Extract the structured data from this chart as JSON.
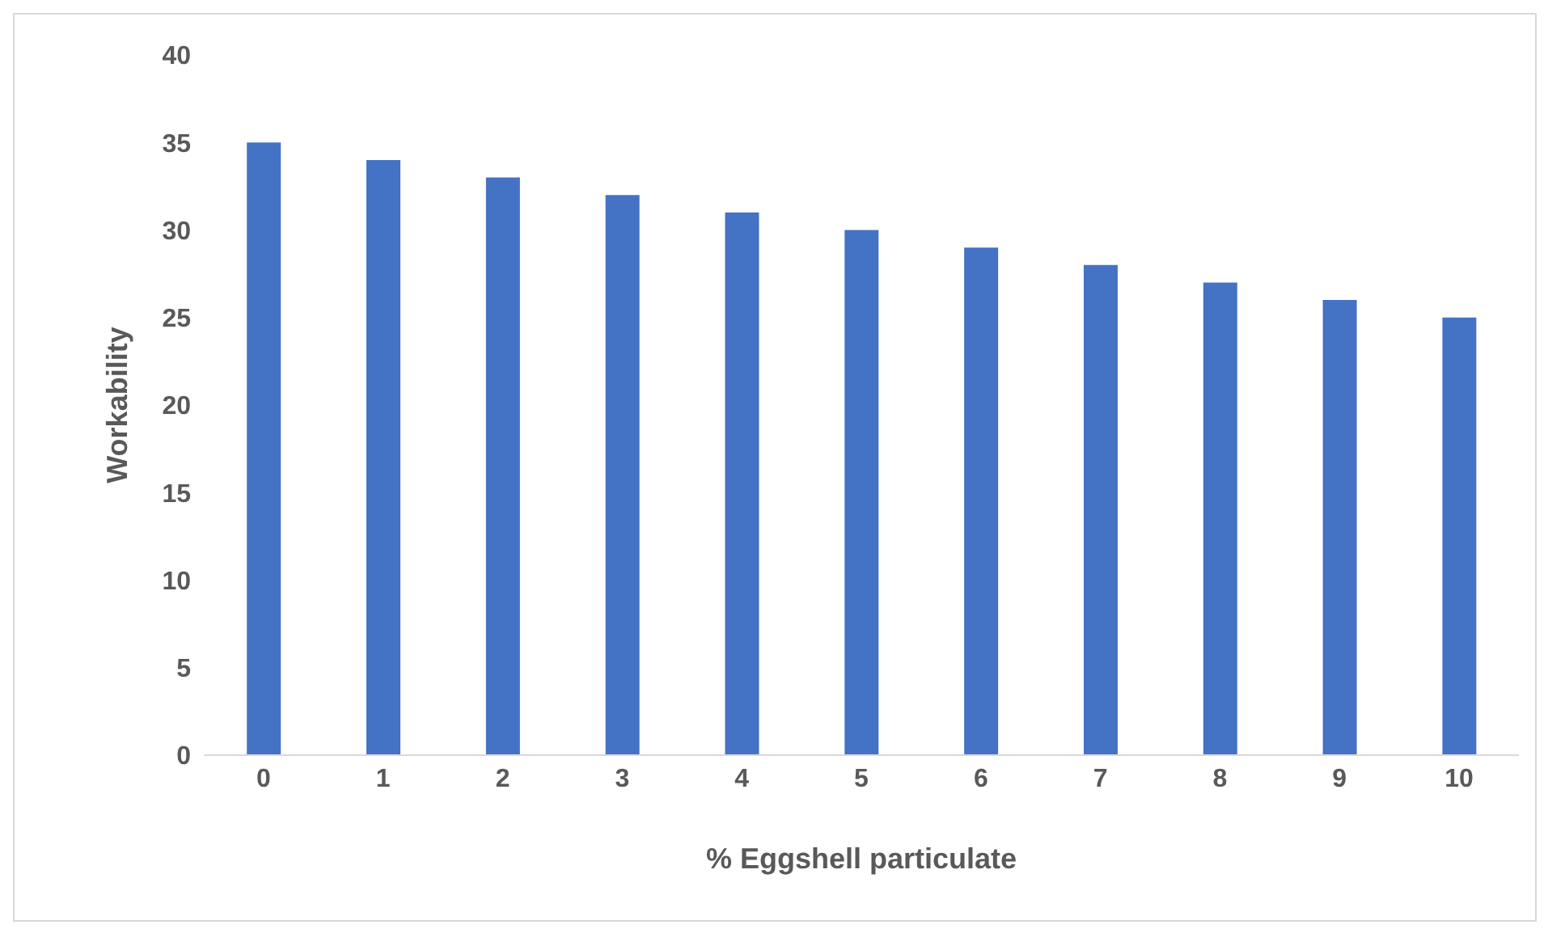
{
  "chart_data": {
    "type": "bar",
    "xlabel": "% Eggshell particulate",
    "ylabel": "Workability",
    "categories": [
      "0",
      "1",
      "2",
      "3",
      "4",
      "5",
      "6",
      "7",
      "8",
      "9",
      "10"
    ],
    "values": [
      35,
      34,
      33,
      32,
      31,
      30,
      29,
      28,
      27,
      26,
      25
    ],
    "color": "#4472c4",
    "ylim": [
      0,
      40
    ],
    "yticks": [
      0,
      5,
      10,
      15,
      20,
      25,
      30,
      35,
      40
    ],
    "grid": false,
    "legend": false
  }
}
